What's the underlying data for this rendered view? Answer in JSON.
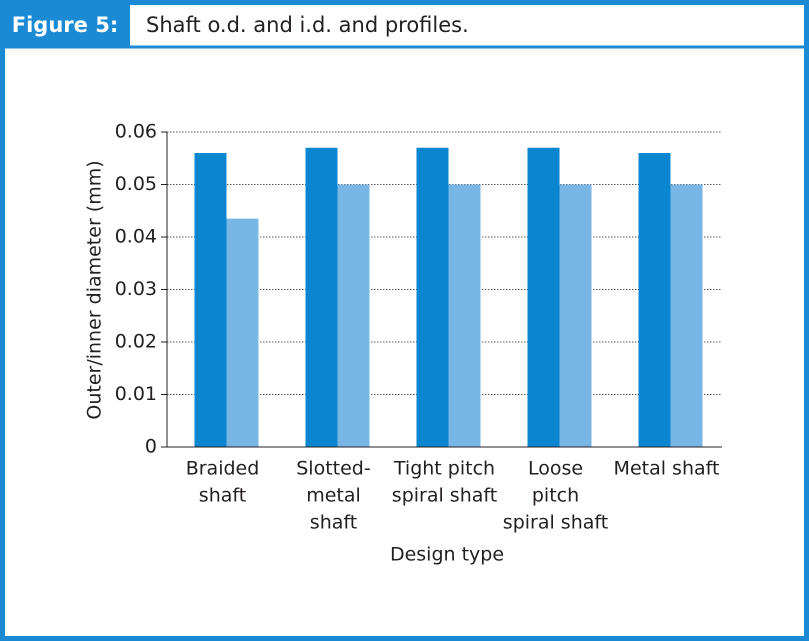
{
  "chart_data": {
    "type": "bar",
    "figure_label": "Figure 5:",
    "title": "Shaft o.d. and i.d. and profiles.",
    "y_label": "Outer/inner diameter (mm)",
    "x_label": "Design type",
    "categories": [
      [
        "Braided",
        "shaft"
      ],
      [
        "Slotted-",
        "metal",
        "shaft"
      ],
      [
        "Tight pitch",
        "spiral shaft"
      ],
      [
        "Loose",
        "pitch",
        "spiral shaft"
      ],
      [
        "Metal shaft"
      ]
    ],
    "series": [
      {
        "color": "#0a86d0",
        "values": [
          0.056,
          0.057,
          0.057,
          0.057,
          0.056
        ]
      },
      {
        "color": "#78b6e6",
        "values": [
          0.0435,
          0.05,
          0.05,
          0.05,
          0.05
        ]
      }
    ],
    "ylim": [
      0,
      0.06
    ],
    "yticks": [
      0,
      0.01,
      0.02,
      0.03,
      0.04,
      0.05,
      0.06
    ],
    "grid": true
  }
}
